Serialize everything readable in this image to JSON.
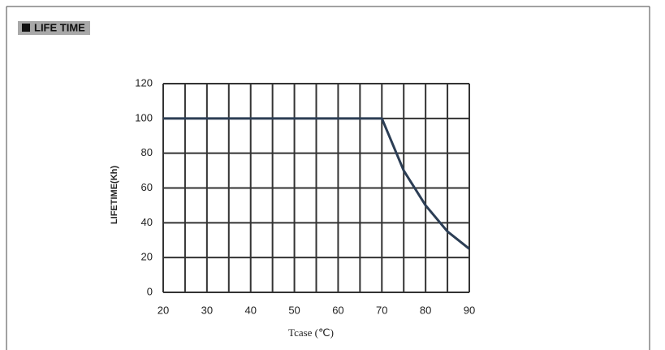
{
  "header": {
    "title": "LIFE TIME"
  },
  "chart_data": {
    "type": "line",
    "x": [
      20,
      70,
      75,
      80,
      85,
      90
    ],
    "values": [
      100,
      100,
      70,
      50,
      35,
      25
    ],
    "color": "#2c3e55",
    "xlim": [
      20,
      90
    ],
    "xticks": [
      20,
      30,
      40,
      50,
      60,
      70,
      80,
      90
    ],
    "x_minor_ticks": [
      25,
      35,
      45,
      55,
      65,
      75,
      85
    ],
    "ylim": [
      0,
      120
    ],
    "yticks": [
      0,
      20,
      40,
      60,
      80,
      100,
      120
    ],
    "grid": true,
    "xlabel": "Tcase  (℃)",
    "ylabel": "LIFETIME(Kh)"
  }
}
